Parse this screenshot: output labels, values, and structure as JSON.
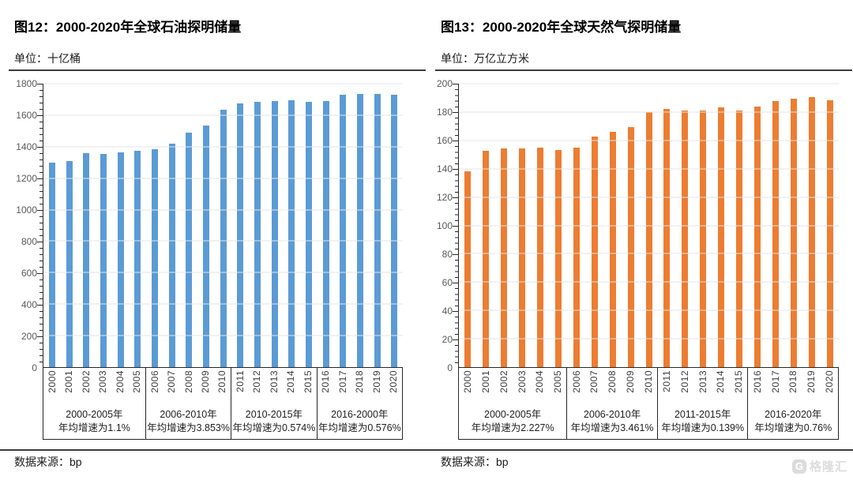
{
  "watermark": {
    "logo_letter": "G",
    "text": "格隆汇"
  },
  "chart_data": [
    {
      "type": "bar",
      "title": "图12：2000-2020年全球石油探明储量",
      "unit_label": "单位：十亿桶",
      "source_label": "数据来源：bp",
      "bar_color": "#5B9BD5",
      "axis_color": "#262626",
      "gridline_color": "#e5e5e5",
      "ylim": [
        0,
        1800
      ],
      "ytick_step": 200,
      "grid": true,
      "legend": "none",
      "categories": [
        "2000",
        "2001",
        "2002",
        "2003",
        "2004",
        "2005",
        "2006",
        "2007",
        "2008",
        "2009",
        "2010",
        "2011",
        "2012",
        "2013",
        "2014",
        "2015",
        "2016",
        "2017",
        "2018",
        "2019",
        "2020"
      ],
      "values": [
        1301,
        1307,
        1357,
        1356,
        1364,
        1374,
        1384,
        1420,
        1489,
        1532,
        1637,
        1675,
        1686,
        1690,
        1694,
        1684,
        1689,
        1730,
        1737,
        1735,
        1732
      ],
      "groups": [
        {
          "span": 6,
          "period": "2000-2005年",
          "growth": "年均增速为1.1%"
        },
        {
          "span": 5,
          "period": "2006-2010年",
          "growth": "年均增速为3.853%"
        },
        {
          "span": 5,
          "period": "2010-2015年",
          "growth": "年均增速为0.574%"
        },
        {
          "span": 5,
          "period": "2016-2000年",
          "growth": "年均增速为0.576%"
        }
      ]
    },
    {
      "type": "bar",
      "title": "图13：2000-2020年全球天然气探明储量",
      "unit_label": "单位：万亿立方米",
      "source_label": "数据来源：bp",
      "bar_color": "#ED7D31",
      "axis_color": "#262626",
      "gridline_color": "#e5e5e5",
      "ylim": [
        0,
        200
      ],
      "ytick_step": 20,
      "grid": true,
      "legend": "none",
      "categories": [
        "2000",
        "2001",
        "2002",
        "2003",
        "2004",
        "2005",
        "2006",
        "2007",
        "2008",
        "2009",
        "2010",
        "2011",
        "2012",
        "2013",
        "2014",
        "2015",
        "2016",
        "2017",
        "2018",
        "2019",
        "2020"
      ],
      "values": [
        138.0,
        152.4,
        154.1,
        154.4,
        155.0,
        153.3,
        155.0,
        162.6,
        166.3,
        169.4,
        180.1,
        182.2,
        181.1,
        181.3,
        183.3,
        181.3,
        183.6,
        188.0,
        189.3,
        190.4,
        188.1
      ],
      "groups": [
        {
          "span": 6,
          "period": "2000-2005年",
          "growth": "年均增速为2.227%"
        },
        {
          "span": 5,
          "period": "2006-2010年",
          "growth": "年均增速为3.461%"
        },
        {
          "span": 5,
          "period": "2011-2015年",
          "growth": "年均增速为0.139%"
        },
        {
          "span": 5,
          "period": "2016-2020年",
          "growth": "年均增速为0.76%"
        }
      ]
    }
  ]
}
